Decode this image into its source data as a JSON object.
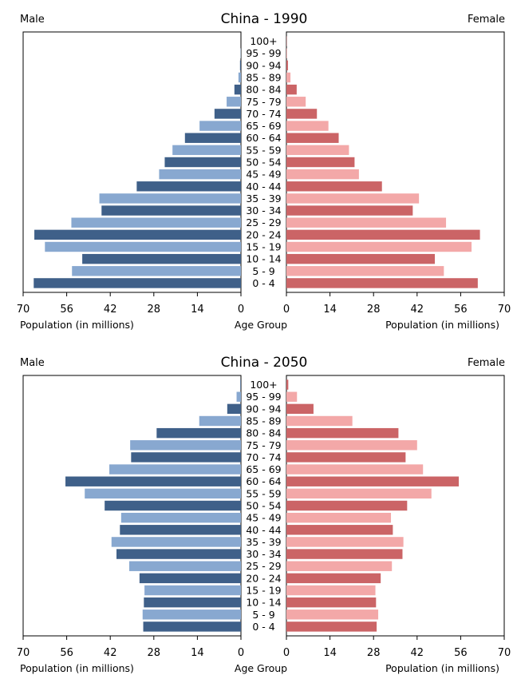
{
  "colors": {
    "male_dark": "#3f6089",
    "male_light": "#88a8d0",
    "female_dark": "#cb6466",
    "female_light": "#f3a8a8"
  },
  "chart_data": [
    {
      "type": "bar",
      "title": "China - 1990",
      "left_label": "Male",
      "right_label": "Female",
      "xlabel_left": "Population (in millions)",
      "xlabel_center": "Age Group",
      "xlabel_right": "Population (in millions)",
      "xlim": [
        0,
        70
      ],
      "x_ticks": [
        70,
        56,
        42,
        28,
        14,
        0
      ],
      "grid": false,
      "categories": [
        "100+",
        "95 - 99",
        "90 - 94",
        "85 - 89",
        "80 - 84",
        "75 - 79",
        "70 - 74",
        "65 - 69",
        "60 - 64",
        "55 - 59",
        "50 - 54",
        "45 - 49",
        "40 - 44",
        "35 - 39",
        "30 - 34",
        "25 - 29",
        "20 - 24",
        "15 - 19",
        "10 - 14",
        "5 - 9",
        "0 - 4"
      ],
      "series": [
        {
          "name": "Male",
          "values": [
            0,
            0.1,
            0.3,
            0.8,
            2.1,
            4.6,
            8.5,
            13.3,
            18.0,
            22.0,
            24.5,
            26.3,
            33.5,
            45.5,
            44.8,
            54.5,
            66.4,
            63.0,
            51.0,
            54.3,
            66.6
          ]
        },
        {
          "name": "Female",
          "values": [
            0.1,
            0.2,
            0.5,
            1.3,
            3.3,
            6.2,
            9.8,
            13.5,
            16.8,
            20.1,
            21.9,
            23.3,
            30.7,
            42.6,
            40.6,
            51.3,
            62.2,
            59.5,
            47.7,
            50.6,
            61.5
          ]
        }
      ]
    },
    {
      "type": "bar",
      "title": "China - 2050",
      "left_label": "Male",
      "right_label": "Female",
      "xlabel_left": "Population (in millions)",
      "xlabel_center": "Age Group",
      "xlabel_right": "Population (in millions)",
      "xlim": [
        0,
        70
      ],
      "x_ticks": [
        70,
        56,
        42,
        28,
        14,
        0
      ],
      "grid": false,
      "categories": [
        "100+",
        "95 - 99",
        "90 - 94",
        "85 - 89",
        "80 - 84",
        "75 - 79",
        "70 - 74",
        "65 - 69",
        "60 - 64",
        "55 - 59",
        "50 - 54",
        "45 - 49",
        "40 - 44",
        "35 - 39",
        "30 - 34",
        "25 - 29",
        "20 - 24",
        "15 - 19",
        "10 - 14",
        "5 - 9",
        "0 - 4"
      ],
      "series": [
        {
          "name": "Male",
          "values": [
            0.2,
            1.4,
            4.4,
            13.4,
            27.1,
            35.6,
            35.3,
            42.3,
            56.4,
            50.2,
            43.8,
            38.5,
            38.9,
            41.6,
            40.0,
            35.9,
            32.6,
            31.0,
            31.2,
            31.6,
            31.4
          ]
        },
        {
          "name": "Female",
          "values": [
            0.6,
            3.4,
            8.7,
            21.2,
            36.0,
            42.0,
            38.3,
            43.9,
            55.4,
            46.6,
            38.8,
            33.6,
            34.2,
            37.6,
            37.3,
            33.9,
            30.3,
            28.6,
            28.8,
            29.5,
            29.0
          ]
        }
      ]
    }
  ]
}
